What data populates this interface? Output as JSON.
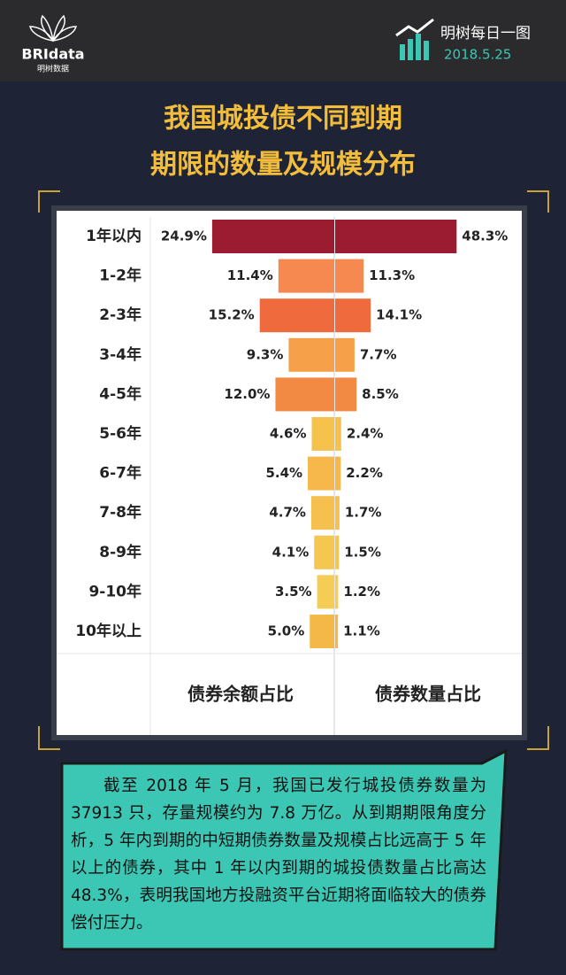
{
  "header": {
    "brand": "BRIdata",
    "brand_cn": "明树数据",
    "series_name": "明树每日一图",
    "date": "2018.5.25"
  },
  "chart_data": {
    "type": "butterfly",
    "title": [
      "我国城投债不同到期",
      "期限的数量及规模分布"
    ],
    "categories": [
      "1年以内",
      "1-2年",
      "2-3年",
      "3-4年",
      "4-5年",
      "5-6年",
      "6-7年",
      "7-8年",
      "8-9年",
      "9-10年",
      "10年以上"
    ],
    "colors": [
      "#9b1b30",
      "#f5894f",
      "#ef6a3c",
      "#f7a04a",
      "#f38a43",
      "#f5c24c",
      "#f6b84a",
      "#f5c04e",
      "#f5c650",
      "#f5cc55",
      "#f3b848"
    ],
    "series": [
      {
        "name": "债券余额占比",
        "side": "left",
        "xlim": [
          0,
          37.5
        ],
        "values": [
          24.9,
          11.4,
          15.2,
          9.3,
          12.0,
          4.6,
          5.4,
          4.7,
          4.1,
          3.5,
          5.0
        ],
        "value_labels": [
          "24.9%",
          "11.4%",
          "15.2%",
          "9.3%",
          "12.0%",
          "4.6%",
          "5.4%",
          "4.7%",
          "4.1%",
          "3.5%",
          "5.0%"
        ]
      },
      {
        "name": "债券数量占比",
        "side": "right",
        "xlim": [
          0,
          70
        ],
        "values": [
          48.3,
          11.3,
          14.1,
          7.7,
          8.5,
          2.4,
          2.2,
          1.7,
          1.5,
          1.2,
          1.1
        ],
        "value_labels": [
          "48.3%",
          "11.3%",
          "14.1%",
          "7.7%",
          "8.5%",
          "2.4%",
          "2.2%",
          "1.7%",
          "1.5%",
          "1.2%",
          "1.1%"
        ]
      }
    ]
  },
  "note": "截至 2018 年 5 月，我国已发行城投债券数量为 37913 只，存量规模约为 7.8 万亿。从到期期限角度分析，5 年内到期的中短期债券数量及规模占比远高于 5 年以上的债券，其中 1 年以内到期的城投债数量占比高达 48.3%，表明我国地方投融资平台近期将面临较大的债券偿付压力。"
}
